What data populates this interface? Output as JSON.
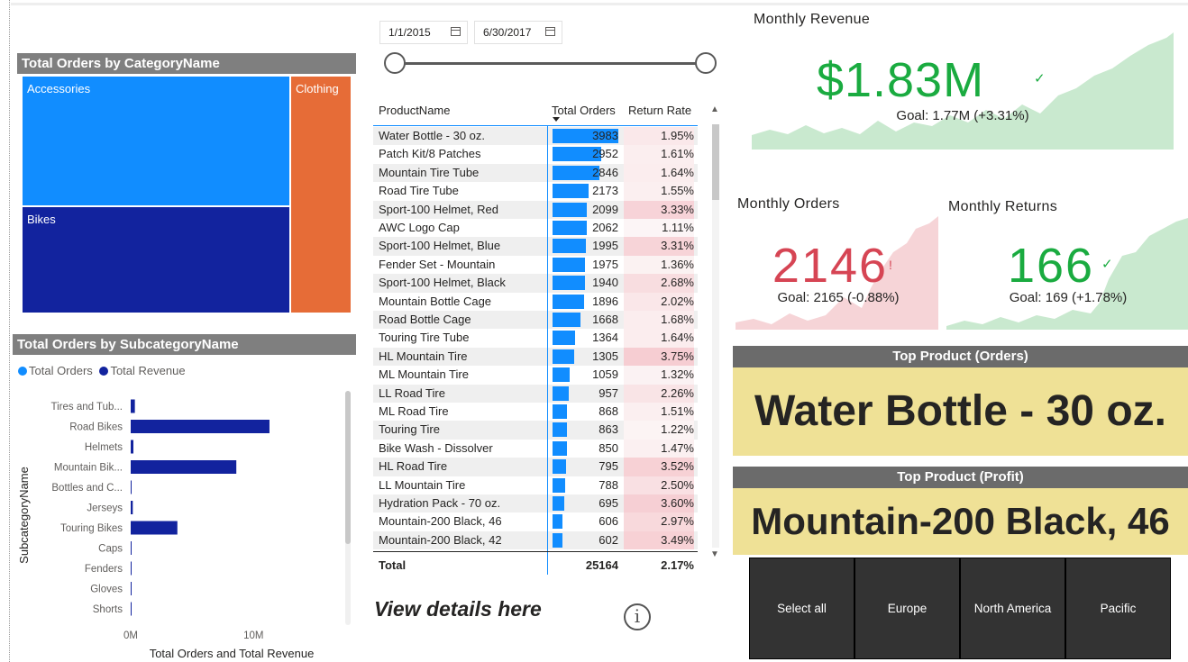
{
  "colors": {
    "accent_blue": "#118dff",
    "dark_blue": "#12239e",
    "orange": "#e66c37",
    "kpi_green": "#1aab40",
    "kpi_red": "#d64554",
    "card_yellow": "#efe196",
    "header_grey": "#7f7f7f"
  },
  "treemap": {
    "title": "Total Orders by CategoryName",
    "tiles": [
      "Accessories",
      "Bikes",
      "Clothing"
    ]
  },
  "subcat_chart": {
    "title": "Total Orders by SubcategoryName",
    "legend": [
      "Total Orders",
      "Total Revenue"
    ]
  },
  "chart_data": {
    "type": "bar",
    "orientation": "horizontal",
    "title": "Total Orders by SubcategoryName",
    "xlabel": "Total Orders and Total Revenue",
    "ylabel": "SubcategoryName",
    "categories": [
      "Tires and Tub...",
      "Road Bikes",
      "Helmets",
      "Mountain Bik...",
      "Bottles and C...",
      "Jerseys",
      "Touring Bikes",
      "Caps",
      "Fenders",
      "Gloves",
      "Shorts"
    ],
    "series": [
      {
        "name": "Total Orders",
        "values": [
          17000,
          8000,
          6400,
          4900,
          7900,
          3300,
          2500,
          2200,
          2000,
          1500,
          1000
        ]
      },
      {
        "name": "Total Revenue",
        "values": [
          340000,
          11300000,
          220000,
          8600000,
          56000,
          170000,
          3800000,
          20000,
          46000,
          35000,
          72000
        ]
      }
    ],
    "xlim": [
      0,
      16000000
    ],
    "x_ticks": [
      "0M",
      "10M"
    ],
    "legend_position": "top-left"
  },
  "date_slicer": {
    "start": "1/1/2015",
    "end": "6/30/2017"
  },
  "table": {
    "headers": [
      "ProductName",
      "Total Orders",
      "Return Rate"
    ],
    "rows": [
      {
        "name": "Water Bottle - 30 oz.",
        "orders": "3983",
        "rate": "1.95%",
        "rate_val": 1.95,
        "orders_val": 3983
      },
      {
        "name": "Patch Kit/8 Patches",
        "orders": "2952",
        "rate": "1.61%",
        "rate_val": 1.61,
        "orders_val": 2952
      },
      {
        "name": "Mountain Tire Tube",
        "orders": "2846",
        "rate": "1.64%",
        "rate_val": 1.64,
        "orders_val": 2846
      },
      {
        "name": "Road Tire Tube",
        "orders": "2173",
        "rate": "1.55%",
        "rate_val": 1.55,
        "orders_val": 2173
      },
      {
        "name": "Sport-100 Helmet, Red",
        "orders": "2099",
        "rate": "3.33%",
        "rate_val": 3.33,
        "orders_val": 2099
      },
      {
        "name": "AWC Logo Cap",
        "orders": "2062",
        "rate": "1.11%",
        "rate_val": 1.11,
        "orders_val": 2062
      },
      {
        "name": "Sport-100 Helmet, Blue",
        "orders": "1995",
        "rate": "3.31%",
        "rate_val": 3.31,
        "orders_val": 1995
      },
      {
        "name": "Fender Set - Mountain",
        "orders": "1975",
        "rate": "1.36%",
        "rate_val": 1.36,
        "orders_val": 1975
      },
      {
        "name": "Sport-100 Helmet, Black",
        "orders": "1940",
        "rate": "2.68%",
        "rate_val": 2.68,
        "orders_val": 1940
      },
      {
        "name": "Mountain Bottle Cage",
        "orders": "1896",
        "rate": "2.02%",
        "rate_val": 2.02,
        "orders_val": 1896
      },
      {
        "name": "Road Bottle Cage",
        "orders": "1668",
        "rate": "1.68%",
        "rate_val": 1.68,
        "orders_val": 1668
      },
      {
        "name": "Touring Tire Tube",
        "orders": "1364",
        "rate": "1.64%",
        "rate_val": 1.64,
        "orders_val": 1364
      },
      {
        "name": "HL Mountain Tire",
        "orders": "1305",
        "rate": "3.75%",
        "rate_val": 3.75,
        "orders_val": 1305
      },
      {
        "name": "ML Mountain Tire",
        "orders": "1059",
        "rate": "1.32%",
        "rate_val": 1.32,
        "orders_val": 1059
      },
      {
        "name": "LL Road Tire",
        "orders": "957",
        "rate": "2.26%",
        "rate_val": 2.26,
        "orders_val": 957
      },
      {
        "name": "ML Road Tire",
        "orders": "868",
        "rate": "1.51%",
        "rate_val": 1.51,
        "orders_val": 868
      },
      {
        "name": "Touring Tire",
        "orders": "863",
        "rate": "1.22%",
        "rate_val": 1.22,
        "orders_val": 863
      },
      {
        "name": "Bike Wash - Dissolver",
        "orders": "850",
        "rate": "1.47%",
        "rate_val": 1.47,
        "orders_val": 850
      },
      {
        "name": "HL Road Tire",
        "orders": "795",
        "rate": "3.52%",
        "rate_val": 3.52,
        "orders_val": 795
      },
      {
        "name": "LL Mountain Tire",
        "orders": "788",
        "rate": "2.50%",
        "rate_val": 2.5,
        "orders_val": 788
      },
      {
        "name": "Hydration Pack - 70 oz.",
        "orders": "695",
        "rate": "3.60%",
        "rate_val": 3.6,
        "orders_val": 695
      },
      {
        "name": "Mountain-200 Black, 46",
        "orders": "606",
        "rate": "2.97%",
        "rate_val": 2.97,
        "orders_val": 606
      },
      {
        "name": "Mountain-200 Black, 42",
        "orders": "602",
        "rate": "3.49%",
        "rate_val": 3.49,
        "orders_val": 602
      }
    ],
    "total_label": "Total",
    "total_orders": "25164",
    "total_rate": "2.17%"
  },
  "view_details": "View details here",
  "kpi_revenue": {
    "title": "Monthly Revenue",
    "value": "$1.83M",
    "status_icon": "check-icon",
    "goal": "Goal: 1.77M (+3.31%)"
  },
  "kpi_orders": {
    "title": "Monthly Orders",
    "value": "2146",
    "status_icon": "exclamation-icon",
    "goal": "Goal: 2165 (-0.88%)"
  },
  "kpi_returns": {
    "title": "Monthly Returns",
    "value": "166",
    "status_icon": "check-icon",
    "goal": "Goal: 169 (+1.78%)"
  },
  "top_orders": {
    "title": "Top Product (Orders)",
    "value": "Water Bottle - 30 oz."
  },
  "top_profit": {
    "title": "Top Product (Profit)",
    "value": "Mountain-200 Black, 46"
  },
  "regions": [
    "Select all",
    "Europe",
    "North America",
    "Pacific"
  ]
}
